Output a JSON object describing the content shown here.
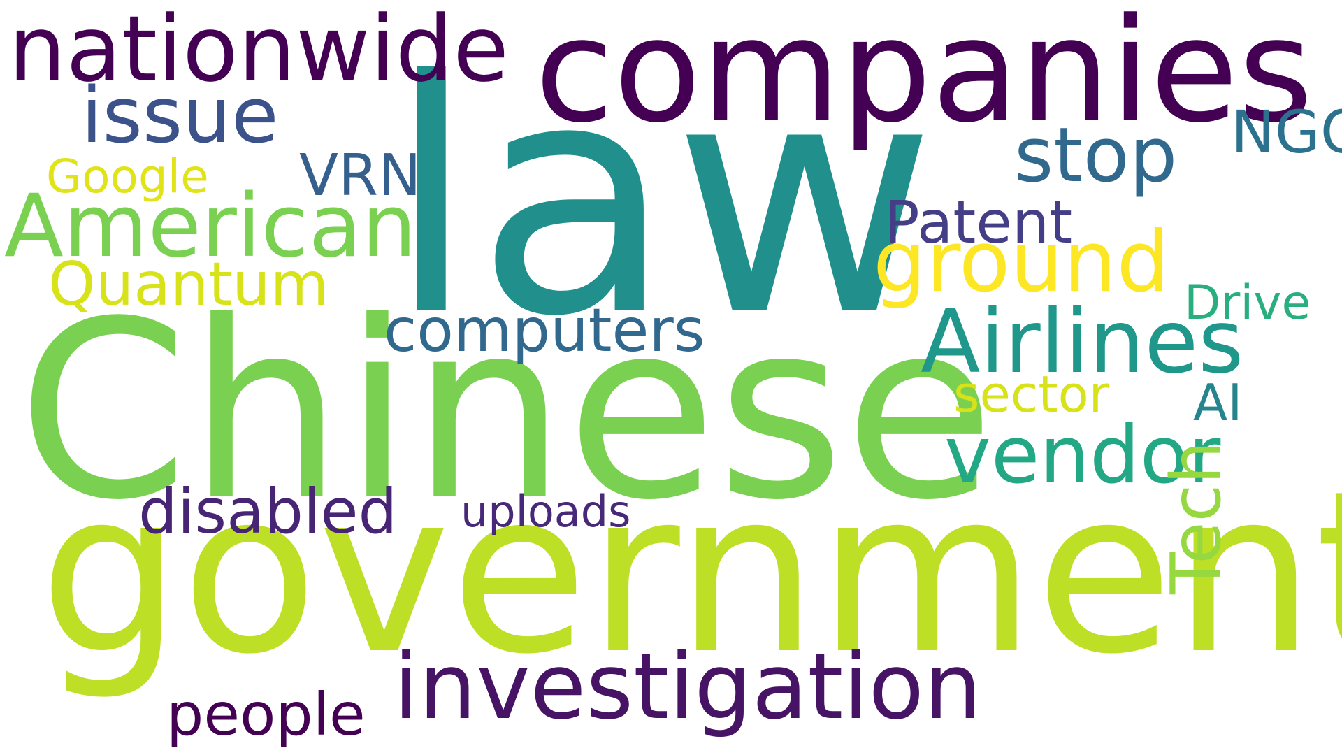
{
  "cloud": {
    "background": "#ffffff",
    "words": [
      {
        "text": "law",
        "color": "#21908d"
      },
      {
        "text": "Chinese",
        "color": "#7ad151"
      },
      {
        "text": "government",
        "color": "#bddf26"
      },
      {
        "text": "companies",
        "color": "#440154"
      },
      {
        "text": "nationwide",
        "color": "#440154"
      },
      {
        "text": "investigation",
        "color": "#471365"
      },
      {
        "text": "Airlines",
        "color": "#1f988b"
      },
      {
        "text": "American",
        "color": "#7ad151"
      },
      {
        "text": "ground",
        "color": "#fde725"
      },
      {
        "text": "vendor",
        "color": "#22a884"
      },
      {
        "text": "issue",
        "color": "#3b528b"
      },
      {
        "text": "stop",
        "color": "#31688e"
      },
      {
        "text": "disabled",
        "color": "#482475"
      },
      {
        "text": "computers",
        "color": "#31688e"
      },
      {
        "text": "Quantum",
        "color": "#d8e219"
      },
      {
        "text": "people",
        "color": "#440154"
      },
      {
        "text": "Patent",
        "color": "#433e85"
      },
      {
        "text": "NGO",
        "color": "#2c728e"
      },
      {
        "text": "VRN",
        "color": "#355f8d"
      },
      {
        "text": "sector",
        "color": "#d8e219"
      },
      {
        "text": "AI",
        "color": "#25848e"
      },
      {
        "text": "Drive",
        "color": "#29af7f"
      },
      {
        "text": "Google",
        "color": "#e1e319"
      },
      {
        "text": "uploads",
        "color": "#482878"
      },
      {
        "text": "Tech",
        "color": "#95d840"
      }
    ]
  }
}
